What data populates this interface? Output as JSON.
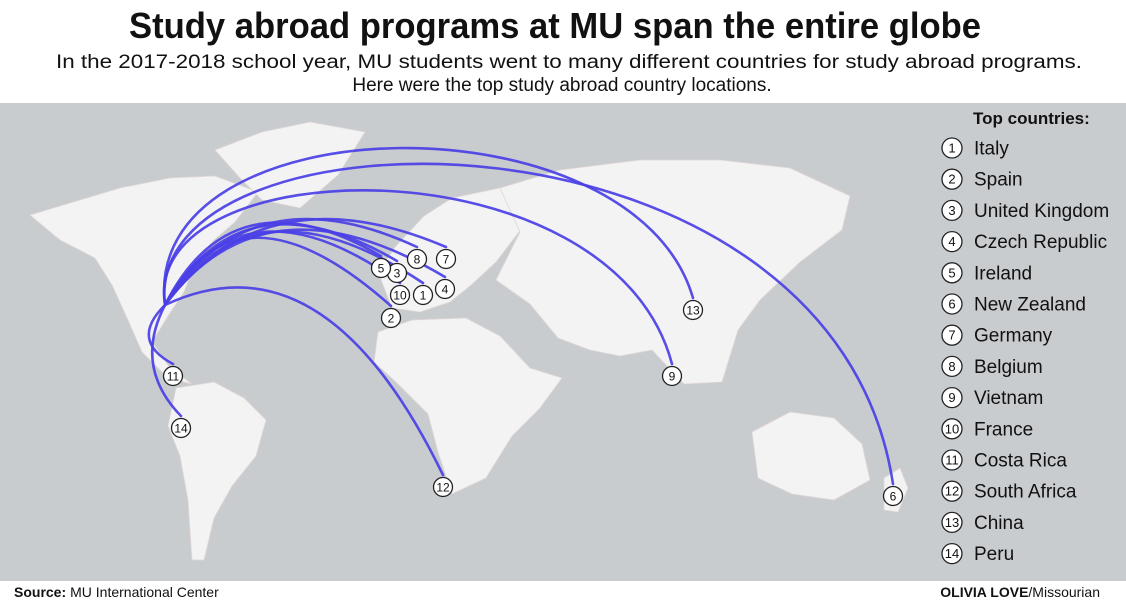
{
  "title": "Study abroad programs at MU span the entire globe",
  "subtitle": [
    "In the 2017-2018 school year, MU students went to many different countries for study abroad programs.",
    "Here were the top study abroad country locations."
  ],
  "legend": {
    "title": "Top countries:",
    "items": [
      {
        "rank": 1,
        "name": "Italy"
      },
      {
        "rank": 2,
        "name": "Spain"
      },
      {
        "rank": 3,
        "name": "United Kingdom"
      },
      {
        "rank": 4,
        "name": "Czech Republic"
      },
      {
        "rank": 5,
        "name": "Ireland"
      },
      {
        "rank": 6,
        "name": "New Zealand"
      },
      {
        "rank": 7,
        "name": "Germany"
      },
      {
        "rank": 8,
        "name": "Belgium"
      },
      {
        "rank": 9,
        "name": "Vietnam"
      },
      {
        "rank": 10,
        "name": "France"
      },
      {
        "rank": 11,
        "name": "Costa Rica"
      },
      {
        "rank": 12,
        "name": "South Africa"
      },
      {
        "rank": 13,
        "name": "China"
      },
      {
        "rank": 14,
        "name": "Peru"
      }
    ]
  },
  "footer": {
    "source_label": "Source:",
    "source": "MU International Center",
    "credit_name": "OLIVIA LOVE",
    "credit_org": "/Missourian"
  }
}
